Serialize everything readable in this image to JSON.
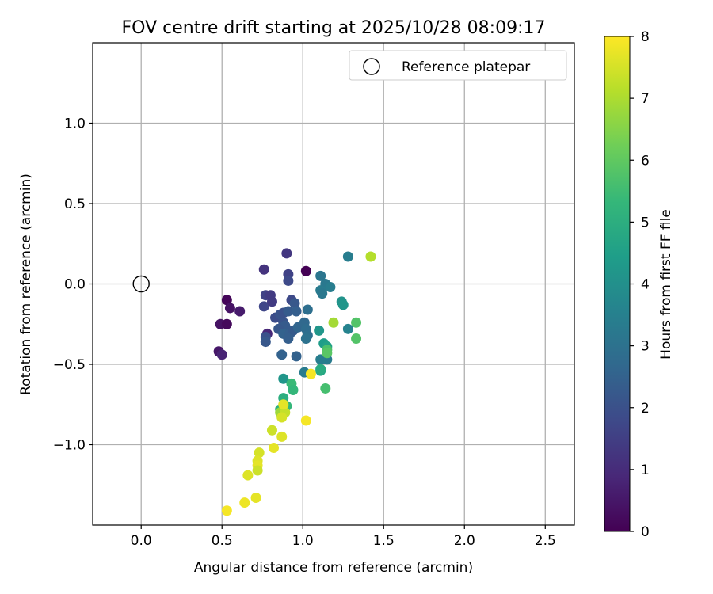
{
  "chart_data": {
    "type": "scatter",
    "title": "FOV centre drift starting at 2025/10/28 08:09:17",
    "xlabel": "Angular distance from reference (arcmin)",
    "ylabel": "Rotation from reference (arcmin)",
    "xlim": [
      -0.3,
      2.68
    ],
    "ylim": [
      -1.5,
      1.5
    ],
    "xticks": [
      0.0,
      0.5,
      1.0,
      1.5,
      2.0,
      2.5
    ],
    "xtick_labels": [
      "0.0",
      "0.5",
      "1.0",
      "1.5",
      "2.0",
      "2.5"
    ],
    "yticks": [
      1.0,
      0.5,
      0.0,
      -0.5,
      -1.0
    ],
    "ytick_labels": [
      "1.0",
      "0.5",
      "0.0",
      "−0.5",
      "−1.0"
    ],
    "grid": true,
    "legend": {
      "placement": "upper right",
      "entries": [
        "Reference platepar"
      ]
    },
    "reference_point": {
      "x": 0.0,
      "y": 0.0,
      "marker": "open-circle",
      "color": "#000000"
    },
    "colorbar": {
      "label": "Hours from first FF file",
      "min": 0,
      "max": 8,
      "ticks": [
        0,
        1,
        2,
        3,
        4,
        5,
        6,
        7,
        8
      ],
      "colormap": "viridis",
      "stops": [
        "#440154",
        "#482878",
        "#3e4989",
        "#31688e",
        "#26828e",
        "#1f9e89",
        "#35b779",
        "#6ece58",
        "#b5de2b",
        "#fde725"
      ]
    },
    "series": [
      {
        "points": [
          {
            "x": 0.53,
            "y": -0.1,
            "hours": 0.1
          },
          {
            "x": 0.55,
            "y": -0.15,
            "hours": 0.4
          },
          {
            "x": 0.61,
            "y": -0.17,
            "hours": 0.6
          },
          {
            "x": 0.49,
            "y": -0.25,
            "hours": 0.4
          },
          {
            "x": 0.53,
            "y": -0.25,
            "hours": 0.2
          },
          {
            "x": 0.48,
            "y": -0.42,
            "hours": 0.5
          },
          {
            "x": 0.5,
            "y": -0.44,
            "hours": 0.8
          },
          {
            "x": 1.02,
            "y": 0.08,
            "hours": 0.0
          },
          {
            "x": 0.78,
            "y": -0.31,
            "hours": 0.9
          },
          {
            "x": 0.76,
            "y": 0.09,
            "hours": 1.2
          },
          {
            "x": 0.9,
            "y": 0.19,
            "hours": 1.3
          },
          {
            "x": 0.77,
            "y": -0.07,
            "hours": 1.6
          },
          {
            "x": 0.8,
            "y": -0.07,
            "hours": 1.4
          },
          {
            "x": 0.76,
            "y": -0.14,
            "hours": 1.7
          },
          {
            "x": 0.81,
            "y": -0.11,
            "hours": 1.4
          },
          {
            "x": 0.91,
            "y": 0.06,
            "hours": 1.6
          },
          {
            "x": 0.91,
            "y": 0.02,
            "hours": 1.8
          },
          {
            "x": 0.83,
            "y": -0.21,
            "hours": 1.9
          },
          {
            "x": 0.86,
            "y": -0.19,
            "hours": 2.1
          },
          {
            "x": 0.88,
            "y": -0.18,
            "hours": 2.0
          },
          {
            "x": 0.93,
            "y": -0.1,
            "hours": 1.8
          },
          {
            "x": 0.95,
            "y": -0.12,
            "hours": 2.2
          },
          {
            "x": 0.91,
            "y": -0.17,
            "hours": 2.3
          },
          {
            "x": 0.96,
            "y": -0.17,
            "hours": 2.4
          },
          {
            "x": 0.88,
            "y": -0.24,
            "hours": 2.1
          },
          {
            "x": 0.89,
            "y": -0.26,
            "hours": 2.3
          },
          {
            "x": 0.85,
            "y": -0.28,
            "hours": 2.2
          },
          {
            "x": 0.88,
            "y": -0.31,
            "hours": 2.5
          },
          {
            "x": 0.92,
            "y": -0.31,
            "hours": 2.4
          },
          {
            "x": 0.94,
            "y": -0.29,
            "hours": 2.3
          },
          {
            "x": 0.97,
            "y": -0.27,
            "hours": 2.6
          },
          {
            "x": 0.77,
            "y": -0.33,
            "hours": 2.0
          },
          {
            "x": 0.77,
            "y": -0.36,
            "hours": 2.2
          },
          {
            "x": 0.91,
            "y": -0.34,
            "hours": 2.4
          },
          {
            "x": 0.87,
            "y": -0.44,
            "hours": 2.5
          },
          {
            "x": 0.96,
            "y": -0.45,
            "hours": 2.5
          },
          {
            "x": 1.01,
            "y": -0.24,
            "hours": 2.7
          },
          {
            "x": 1.02,
            "y": -0.28,
            "hours": 2.8
          },
          {
            "x": 1.03,
            "y": -0.32,
            "hours": 2.9
          },
          {
            "x": 1.02,
            "y": -0.34,
            "hours": 3.0
          },
          {
            "x": 1.03,
            "y": -0.16,
            "hours": 2.9
          },
          {
            "x": 1.11,
            "y": 0.05,
            "hours": 3.1
          },
          {
            "x": 1.14,
            "y": 0.0,
            "hours": 3.2
          },
          {
            "x": 1.17,
            "y": -0.02,
            "hours": 3.4
          },
          {
            "x": 1.11,
            "y": -0.04,
            "hours": 3.3
          },
          {
            "x": 1.12,
            "y": -0.06,
            "hours": 3.2
          },
          {
            "x": 1.28,
            "y": 0.17,
            "hours": 3.4
          },
          {
            "x": 1.01,
            "y": -0.55,
            "hours": 3.3
          },
          {
            "x": 1.15,
            "y": -0.47,
            "hours": 3.3
          },
          {
            "x": 1.11,
            "y": -0.47,
            "hours": 3.4
          },
          {
            "x": 1.28,
            "y": -0.28,
            "hours": 3.6
          },
          {
            "x": 1.24,
            "y": -0.11,
            "hours": 4.1
          },
          {
            "x": 1.25,
            "y": -0.13,
            "hours": 4.2
          },
          {
            "x": 1.1,
            "y": -0.29,
            "hours": 4.2
          },
          {
            "x": 1.13,
            "y": -0.37,
            "hours": 4.4
          },
          {
            "x": 1.15,
            "y": -0.39,
            "hours": 4.6
          },
          {
            "x": 1.11,
            "y": -0.54,
            "hours": 4.7
          },
          {
            "x": 1.11,
            "y": -0.53,
            "hours": 4.9
          },
          {
            "x": 0.88,
            "y": -0.59,
            "hours": 4.2
          },
          {
            "x": 0.93,
            "y": -0.62,
            "hours": 5.4
          },
          {
            "x": 0.94,
            "y": -0.66,
            "hours": 5.3
          },
          {
            "x": 0.88,
            "y": -0.71,
            "hours": 5.0
          },
          {
            "x": 0.9,
            "y": -0.76,
            "hours": 5.3
          },
          {
            "x": 0.86,
            "y": -0.78,
            "hours": 5.1
          },
          {
            "x": 1.15,
            "y": -0.41,
            "hours": 5.7
          },
          {
            "x": 1.15,
            "y": -0.43,
            "hours": 5.9
          },
          {
            "x": 1.14,
            "y": -0.65,
            "hours": 5.6
          },
          {
            "x": 1.33,
            "y": -0.24,
            "hours": 5.8
          },
          {
            "x": 1.33,
            "y": -0.34,
            "hours": 5.8
          },
          {
            "x": 1.19,
            "y": -0.24,
            "hours": 6.9
          },
          {
            "x": 1.42,
            "y": 0.17,
            "hours": 7.1
          },
          {
            "x": 0.86,
            "y": -0.8,
            "hours": 6.8
          },
          {
            "x": 0.89,
            "y": -0.8,
            "hours": 7.3
          },
          {
            "x": 0.87,
            "y": -0.83,
            "hours": 7.5
          },
          {
            "x": 0.88,
            "y": -0.75,
            "hours": 7.7
          },
          {
            "x": 1.02,
            "y": -0.85,
            "hours": 7.9
          },
          {
            "x": 1.05,
            "y": -0.56,
            "hours": 7.9
          },
          {
            "x": 0.81,
            "y": -0.91,
            "hours": 7.4
          },
          {
            "x": 0.87,
            "y": -0.95,
            "hours": 7.6
          },
          {
            "x": 0.82,
            "y": -1.02,
            "hours": 7.7
          },
          {
            "x": 0.73,
            "y": -1.05,
            "hours": 7.5
          },
          {
            "x": 0.72,
            "y": -1.1,
            "hours": 7.6
          },
          {
            "x": 0.72,
            "y": -1.13,
            "hours": 7.7
          },
          {
            "x": 0.72,
            "y": -1.16,
            "hours": 7.4
          },
          {
            "x": 0.66,
            "y": -1.19,
            "hours": 7.6
          },
          {
            "x": 0.71,
            "y": -1.33,
            "hours": 7.7
          },
          {
            "x": 0.64,
            "y": -1.36,
            "hours": 7.8
          },
          {
            "x": 0.53,
            "y": -1.41,
            "hours": 7.9
          }
        ]
      }
    ]
  }
}
